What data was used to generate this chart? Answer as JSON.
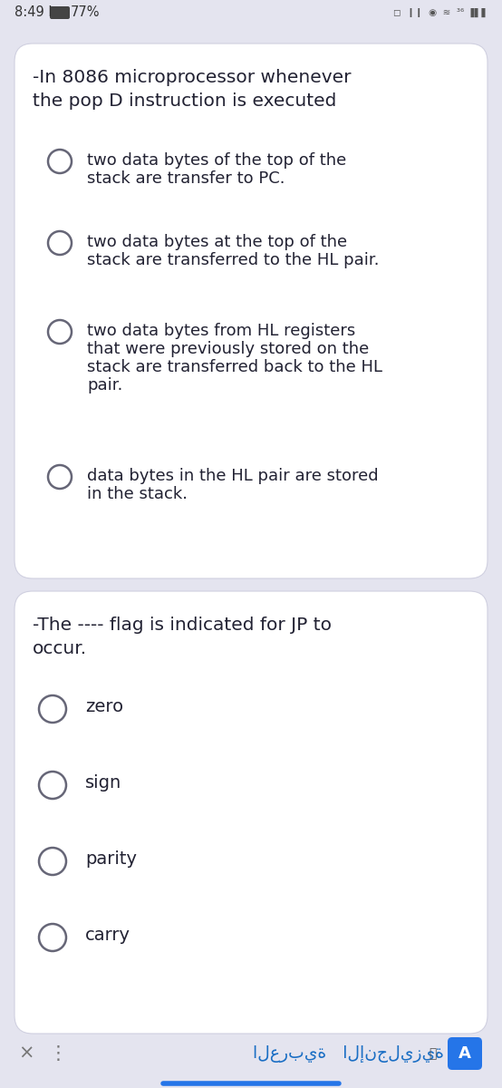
{
  "bg_color": "#e4e4ef",
  "card_color": "#ffffff",
  "card_border": "#d0d0e0",
  "q1_title_line1": "-In 8086 microprocessor whenever",
  "q1_title_line2": "the pop D instruction is executed",
  "q1_options": [
    "two data bytes of the top of the\nstack are transfer to PC.",
    "two data bytes at the top of the\nstack are transferred to the HL pair.",
    "two data bytes from HL registers\nthat were previously stored on the\nstack are transferred back to the HL\npair.",
    "data bytes in the HL pair are stored\nin the stack."
  ],
  "q2_title_line1": "-The ---- flag is indicated for JP to",
  "q2_title_line2": "occur.",
  "q2_options": [
    "zero",
    "sign",
    "parity",
    "carry"
  ],
  "text_color": "#222233",
  "circle_edge_color": "#666677",
  "status_left": "8:49 I",
  "status_batt": "77%",
  "bottom_x": "×",
  "bottom_dots": "⋮",
  "bottom_arabic": "العربية   الإنجليزية",
  "btn_a_color": "#2575e8",
  "btn_a_text": "A",
  "blue_line_color": "#2575e8",
  "title_fontsize": 14.5,
  "option_fontsize": 13,
  "q2_option_fontsize": 14
}
